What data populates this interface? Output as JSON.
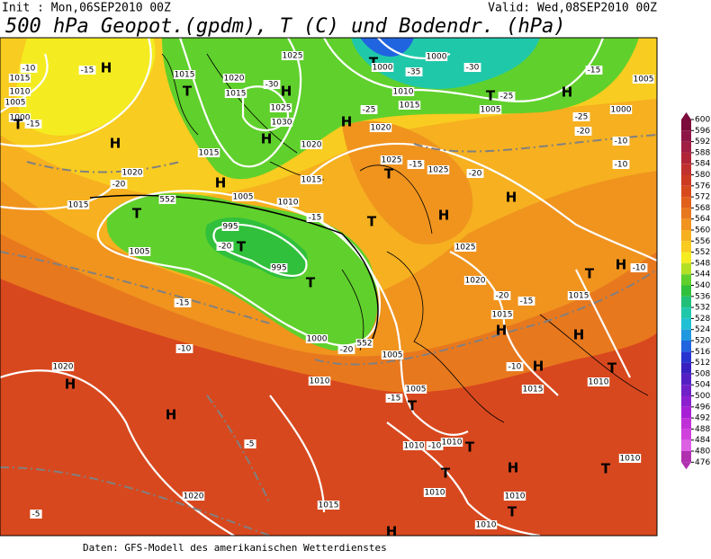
{
  "header": {
    "init": "Init : Mon,06SEP2010 00Z",
    "valid": "Valid: Wed,08SEP2010 00Z",
    "title": "500 hPa Geopot.(gpdm), T (C) und Bodendr. (hPa)"
  },
  "footer": "Daten: GFS-Modell des amerikanischen Wetterdienstes",
  "colorbar": {
    "levels": [
      600,
      596,
      592,
      588,
      584,
      580,
      576,
      572,
      568,
      564,
      560,
      556,
      552,
      548,
      544,
      540,
      536,
      532,
      528,
      524,
      520,
      516,
      512,
      508,
      504,
      500,
      496,
      492,
      488,
      484,
      480,
      476
    ],
    "colors": [
      "#7c0c3c",
      "#8e1646",
      "#a01e44",
      "#b02638",
      "#c0302e",
      "#cc3a22",
      "#d84a1e",
      "#e0601c",
      "#e8781e",
      "#f0941e",
      "#f6b020",
      "#f8cc20",
      "#f4ec20",
      "#b4e024",
      "#60d02c",
      "#30c03c",
      "#20c078",
      "#20c8aa",
      "#20c0d4",
      "#2098e0",
      "#2064e0",
      "#2834d0",
      "#3820c0",
      "#5420c4",
      "#7020c8",
      "#8c20d0",
      "#a820d6",
      "#c030d8",
      "#d040dc",
      "#dc60e4",
      "#b030b0"
    ]
  },
  "map_labels": [
    "H",
    "1015",
    "-10",
    "1010",
    "1005",
    "-15",
    "1000",
    "-15",
    "T",
    "H",
    "1020",
    "-20",
    "1015",
    "1015",
    "1020",
    "1025",
    "T",
    "1015",
    "H",
    "-30",
    "1025",
    "1030",
    "H",
    "1020",
    "1015",
    "-25",
    "1020",
    "H",
    "T",
    "1000",
    "-35",
    "1000",
    "-30",
    "1010",
    "1015",
    "1005",
    "T",
    "-25",
    "-25",
    "-20",
    "-15",
    "1000",
    "1005",
    "-10",
    "-10",
    "H",
    "H",
    "H",
    "T",
    "-15",
    "1025",
    "1025",
    "T",
    "-20",
    "1015",
    "1010",
    "-15",
    "H",
    "1005",
    "T",
    "995",
    "T",
    "-20",
    "1005",
    "995",
    "T",
    "1025",
    "1020",
    "-20",
    "-15",
    "1015",
    "1015",
    "T",
    "H",
    "-10",
    "H",
    "H",
    "1010",
    "T",
    "H",
    "-10",
    "1015",
    "1000",
    "-20",
    "1005",
    "1010",
    "-15",
    "1005",
    "T",
    "-10",
    "1020",
    "H",
    "H",
    "-5",
    "1010",
    "-10",
    "1010",
    "T",
    "T",
    "H",
    "T",
    "1010",
    "1010",
    "1010",
    "T",
    "1020",
    "-5",
    "1015",
    "1010",
    "H",
    "-15",
    "552",
    "552"
  ]
}
